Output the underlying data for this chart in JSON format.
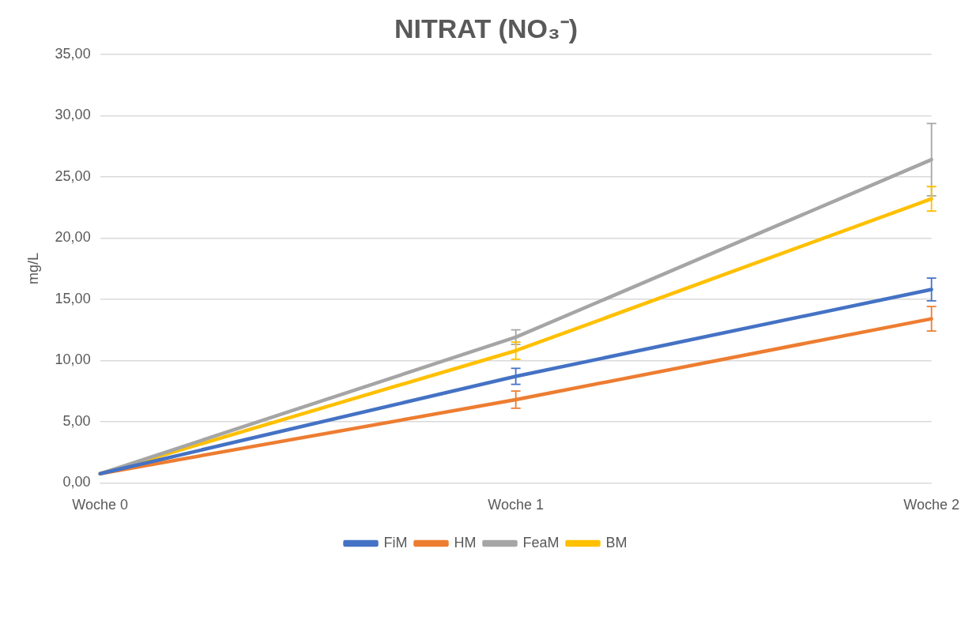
{
  "chart_data": {
    "type": "line",
    "title": "NITRAT (NO₃⁻)",
    "ylabel": "mg/L",
    "categories": [
      "Woche 0",
      "Woche 1",
      "Woche 2"
    ],
    "series": [
      {
        "name": "FiM",
        "color": "#4472c4",
        "values": [
          0.75,
          8.7,
          15.8
        ],
        "errors": [
          null,
          0.65,
          0.93
        ]
      },
      {
        "name": "HM",
        "color": "#ed7d31",
        "values": [
          0.75,
          6.8,
          13.4
        ],
        "errors": [
          null,
          0.7,
          1.0
        ]
      },
      {
        "name": "FeaM",
        "color": "#a5a5a5",
        "values": [
          0.75,
          11.9,
          26.4
        ],
        "errors": [
          null,
          0.6,
          2.95
        ]
      },
      {
        "name": "BM",
        "color": "#ffc000",
        "values": [
          0.75,
          10.8,
          23.2
        ],
        "errors": [
          null,
          0.7,
          1.0
        ]
      }
    ],
    "ylim": [
      0,
      35
    ],
    "yticks": [
      {
        "value": 0,
        "label": "0,00"
      },
      {
        "value": 5,
        "label": "5,00"
      },
      {
        "value": 10,
        "label": "10,00"
      },
      {
        "value": 15,
        "label": "15,00"
      },
      {
        "value": 20,
        "label": "20,00"
      },
      {
        "value": 25,
        "label": "25,00"
      },
      {
        "value": 30,
        "label": "30,00"
      },
      {
        "value": 35,
        "label": "35,00"
      }
    ],
    "grid": "y",
    "legend": "bottom",
    "marker": "none",
    "line_style": "solid"
  }
}
